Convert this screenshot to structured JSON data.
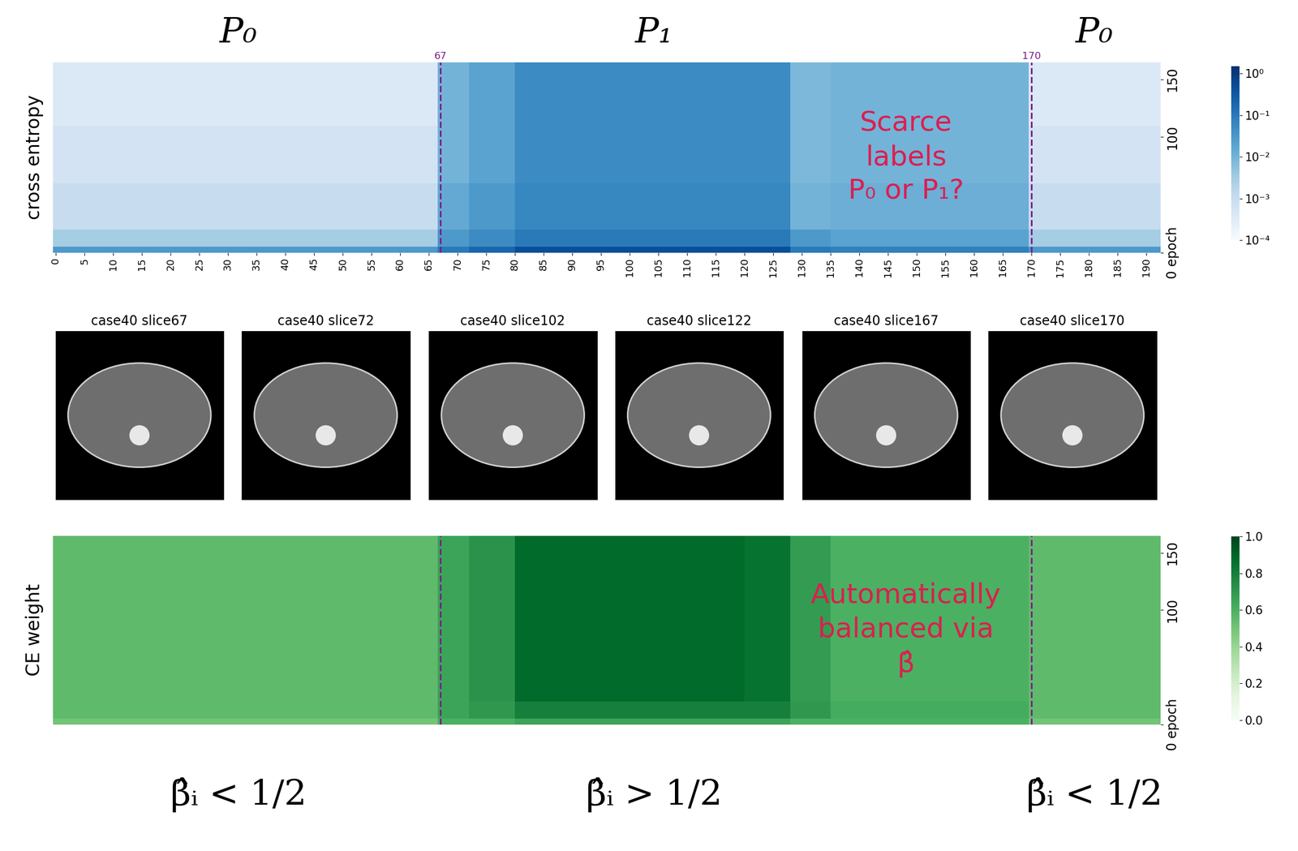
{
  "chart_data": [
    {
      "type": "heatmap",
      "ylabel": "cross entropy",
      "x_edges": [
        -0.5,
        10,
        20,
        30,
        40,
        50,
        60,
        66.5,
        72,
        80,
        90,
        100,
        110,
        120,
        128,
        135,
        145,
        155,
        165,
        169.5,
        180,
        192.5
      ],
      "y_edges": [
        0,
        5,
        20,
        60,
        110,
        165
      ],
      "cells": [
        [
          0.03,
          0.03,
          0.03,
          0.03,
          0.03,
          0.03,
          0.03,
          0.1,
          0.2,
          0.5,
          0.5,
          0.5,
          0.5,
          0.5,
          0.1,
          0.08,
          0.08,
          0.08,
          0.08,
          0.03,
          0.03
        ],
        [
          0.003,
          0.003,
          0.003,
          0.003,
          0.003,
          0.003,
          0.003,
          0.03,
          0.05,
          0.1,
          0.1,
          0.1,
          0.1,
          0.1,
          0.03,
          0.02,
          0.02,
          0.02,
          0.02,
          0.003,
          0.003
        ],
        [
          0.001,
          0.001,
          0.001,
          0.001,
          0.001,
          0.001,
          0.001,
          0.015,
          0.03,
          0.06,
          0.06,
          0.06,
          0.06,
          0.06,
          0.01,
          0.012,
          0.012,
          0.012,
          0.012,
          0.001,
          0.001
        ],
        [
          0.0006,
          0.0006,
          0.0006,
          0.0006,
          0.0006,
          0.0006,
          0.0006,
          0.01,
          0.02,
          0.05,
          0.05,
          0.05,
          0.05,
          0.05,
          0.008,
          0.01,
          0.01,
          0.01,
          0.01,
          0.0006,
          0.0006
        ],
        [
          0.0004,
          0.0004,
          0.0004,
          0.0004,
          0.0004,
          0.0004,
          0.0004,
          0.01,
          0.02,
          0.05,
          0.05,
          0.05,
          0.05,
          0.05,
          0.008,
          0.01,
          0.01,
          0.01,
          0.01,
          0.0004,
          0.0004
        ]
      ],
      "xlim": [
        -0.5,
        192.5
      ],
      "xticks": [
        0,
        5,
        10,
        15,
        20,
        25,
        30,
        35,
        40,
        45,
        50,
        55,
        60,
        65,
        70,
        75,
        80,
        85,
        90,
        95,
        100,
        105,
        110,
        115,
        120,
        125,
        130,
        135,
        140,
        145,
        150,
        155,
        160,
        165,
        170,
        175,
        180,
        185,
        190
      ],
      "ylim": [
        0,
        165
      ],
      "yticks": [
        {
          "value": 0,
          "label": "0 epoch"
        },
        100,
        150
      ],
      "log": true,
      "colorbar": {
        "range": [
          0.0001,
          1.5
        ],
        "ticks": [
          {
            "value": 0.0001,
            "label": "10⁻⁴"
          },
          {
            "value": 0.001,
            "label": "10⁻³"
          },
          {
            "value": 0.01,
            "label": "10⁻²"
          },
          {
            "value": 0.1,
            "label": "10⁻¹"
          },
          {
            "value": 1,
            "label": "10⁰"
          }
        ]
      },
      "color": "Blues",
      "markers": [
        67,
        170
      ],
      "annotation": "Scarce\nlabels\nP₀ or P₁?"
    },
    {
      "type": "heatmap",
      "ylabel": "CE weight",
      "x_edges": [
        -0.5,
        10,
        20,
        30,
        40,
        50,
        60,
        66.5,
        72,
        80,
        90,
        100,
        110,
        120,
        128,
        135,
        145,
        155,
        165,
        169.5,
        180,
        192.5
      ],
      "y_edges": [
        0,
        5,
        20,
        60,
        110,
        165
      ],
      "cells": [
        [
          0.5,
          0.5,
          0.5,
          0.5,
          0.5,
          0.5,
          0.5,
          0.6,
          0.6,
          0.65,
          0.65,
          0.65,
          0.65,
          0.65,
          0.6,
          0.6,
          0.6,
          0.6,
          0.6,
          0.5,
          0.5
        ],
        [
          0.55,
          0.55,
          0.55,
          0.55,
          0.55,
          0.55,
          0.55,
          0.65,
          0.7,
          0.8,
          0.8,
          0.8,
          0.8,
          0.8,
          0.7,
          0.62,
          0.62,
          0.62,
          0.62,
          0.55,
          0.55
        ],
        [
          0.55,
          0.55,
          0.55,
          0.55,
          0.55,
          0.55,
          0.55,
          0.65,
          0.72,
          0.88,
          0.88,
          0.88,
          0.88,
          0.85,
          0.68,
          0.6,
          0.6,
          0.6,
          0.6,
          0.55,
          0.55
        ],
        [
          0.55,
          0.55,
          0.55,
          0.55,
          0.55,
          0.55,
          0.55,
          0.65,
          0.72,
          0.88,
          0.88,
          0.88,
          0.88,
          0.85,
          0.68,
          0.6,
          0.6,
          0.6,
          0.6,
          0.55,
          0.55
        ],
        [
          0.55,
          0.55,
          0.55,
          0.55,
          0.55,
          0.55,
          0.55,
          0.65,
          0.72,
          0.88,
          0.88,
          0.88,
          0.88,
          0.85,
          0.68,
          0.6,
          0.6,
          0.6,
          0.6,
          0.55,
          0.55
        ]
      ],
      "xlim": [
        -0.5,
        192.5
      ],
      "tick_labels": "y",
      "ylim": [
        0,
        165
      ],
      "yticks": [
        {
          "value": 0,
          "label": "0 epoch"
        },
        100,
        150
      ],
      "colorbar": {
        "range": [
          0.0,
          1.0
        ],
        "ticks": [
          0.0,
          0.2,
          0.4,
          0.6,
          0.8,
          1.0
        ]
      },
      "color": "Greens",
      "markers": [
        67,
        170
      ],
      "annotation": "Automatically\nbalanced via\nβ̂"
    }
  ],
  "images": [
    "case40 slice67",
    "case40 slice72",
    "case40 slice102",
    "case40 slice122",
    "case40 slice167",
    "case40 slice170"
  ],
  "top_labels": [
    "P₀",
    "P₁",
    "P₀"
  ],
  "bottom_labels": [
    "β̂ᵢ < 1/2",
    "β̂ᵢ > 1/2",
    "β̂ᵢ < 1/2"
  ]
}
